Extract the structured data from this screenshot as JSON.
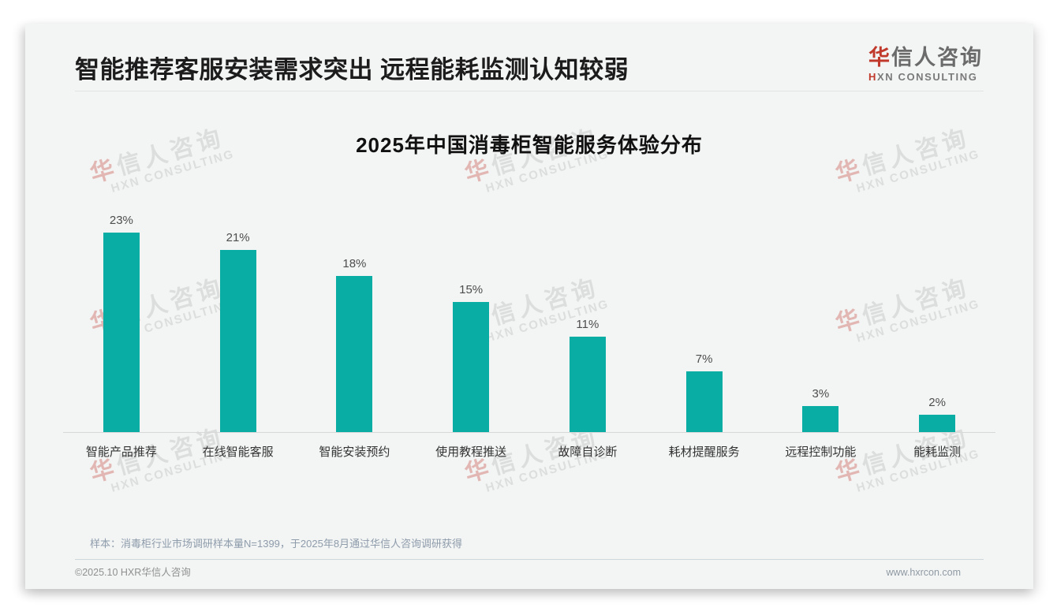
{
  "page": {
    "header": {
      "title": "智能推荐客服安装需求突出 远程能耗监测认知较弱",
      "logo": {
        "cn_accent": "华",
        "cn_rest": "信人咨询",
        "en_accent": "H",
        "en_rest": "XN CONSULTING"
      }
    },
    "footnote": "样本：消毒柜行业市场调研样本量N=1399，于2025年8月通过华信人咨询调研获得",
    "footer": {
      "copyright": "©2025.10 HXR华信人咨询",
      "website": "www.hxrcon.com"
    },
    "watermark": {
      "line1": "华信人咨询",
      "line2": "HXN CONSULTING"
    }
  },
  "chart_data": {
    "type": "bar",
    "title": "2025年中国消毒柜智能服务体验分布",
    "categories": [
      "智能产品推荐",
      "在线智能客服",
      "智能安装预约",
      "使用教程推送",
      "故障自诊断",
      "耗材提醒服务",
      "远程控制功能",
      "能耗监测"
    ],
    "values": [
      23,
      21,
      18,
      15,
      11,
      7,
      3,
      2
    ],
    "value_labels": [
      "23%",
      "21%",
      "18%",
      "15%",
      "11%",
      "7%",
      "3%",
      "2%"
    ],
    "unit": "%",
    "bar_color": "#0aada4",
    "ylim": [
      0,
      25
    ],
    "grid": false,
    "legend": "none",
    "value_labels_position": "above-bars",
    "xlabel": "",
    "ylabel": ""
  }
}
